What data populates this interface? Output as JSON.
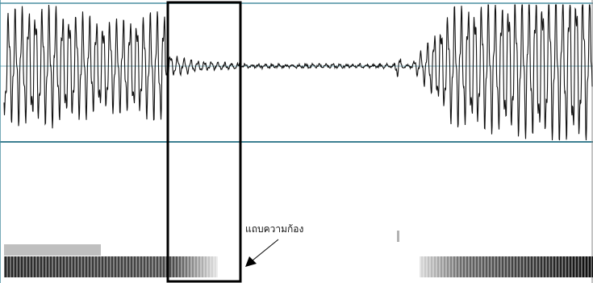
{
  "annotation": "แถบความก้อง"
}
